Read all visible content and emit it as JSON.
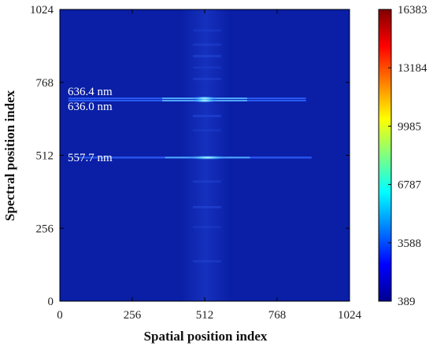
{
  "chart_data": {
    "type": "heatmap",
    "xlabel": "Spatial position index",
    "ylabel": "Spectral position index",
    "xlim": [
      0,
      1024
    ],
    "ylim": [
      0,
      1024
    ],
    "x_ticks": [
      "0",
      "256",
      "512",
      "768",
      "1024"
    ],
    "y_ticks": [
      "0",
      "256",
      "512",
      "768",
      "1024"
    ],
    "colorbar": {
      "min": 389,
      "max": 16383,
      "ticks": [
        "389",
        "3588",
        "6787",
        "9985",
        "13184",
        "16383"
      ],
      "colormap": "jet"
    },
    "background_color": "#0a1fa6",
    "lines": [
      {
        "label": "636.4 nm",
        "y": 712,
        "x_range": [
          30,
          870
        ],
        "peak_x": 512
      },
      {
        "label": "636.0 nm",
        "y": 704,
        "x_range": [
          30,
          870
        ],
        "peak_x": 512
      },
      {
        "label": "557.7 nm",
        "y": 504,
        "x_range": [
          60,
          890
        ],
        "peak_x": 522
      }
    ],
    "annotations": [
      "636.4 nm",
      "636.0 nm",
      "557.7 nm"
    ]
  }
}
